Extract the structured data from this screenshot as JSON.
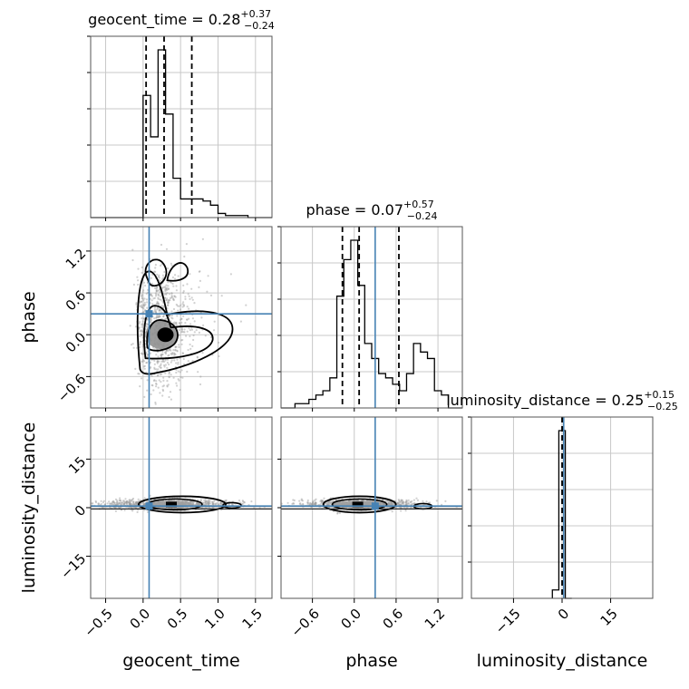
{
  "chart_data": {
    "type": "corner",
    "parameters": [
      "geocent_time",
      "phase",
      "luminosity_distance"
    ],
    "injection": {
      "geocent_time": 0.08,
      "phase": 0.3,
      "luminosity_distance": 0.5
    },
    "colors": {
      "truth": "#4682b4",
      "contour": "#000000",
      "scatter": "#9a9a9a",
      "grid": "#c8c8c8"
    },
    "grid": true,
    "marginals": [
      {
        "param": "geocent_time",
        "title": {
          "name": "geocent_time",
          "median": "0.28",
          "plus": "+0.37",
          "minus": "−0.24"
        },
        "range": [
          -0.7,
          1.72
        ],
        "quantile_lines": [
          0.04,
          0.28,
          0.65
        ],
        "bins": {
          "edges": [
            -0.7,
            -0.6,
            -0.5,
            -0.4,
            -0.3,
            -0.2,
            -0.1,
            0.0,
            0.1,
            0.2,
            0.3,
            0.4,
            0.5,
            0.6,
            0.7,
            0.8,
            0.9,
            1.0,
            1.1,
            1.2,
            1.3,
            1.4,
            1.5,
            1.6,
            1.72
          ],
          "counts": [
            0,
            0,
            0,
            0,
            0,
            0,
            0,
            0.59,
            0.39,
            0.81,
            0.5,
            0.19,
            0.09,
            0.09,
            0.09,
            0.08,
            0.06,
            0.02,
            0.01,
            0.01,
            0.01,
            0.0,
            0.0,
            0.0
          ]
        },
        "xticks": [
          "-0.5",
          "0.0",
          "0.5",
          "1.0",
          "1.5"
        ],
        "xtick_values": [
          -0.5,
          0.0,
          0.5,
          1.0,
          1.5
        ]
      },
      {
        "param": "phase",
        "title": {
          "name": "phase",
          "median": "0.07",
          "plus": "+0.57",
          "minus": "−0.24"
        },
        "range": [
          -1.05,
          1.55
        ],
        "truth": 0.3,
        "quantile_lines": [
          -0.17,
          0.07,
          0.64
        ],
        "bins": {
          "edges": [
            -1.05,
            -0.95,
            -0.85,
            -0.75,
            -0.65,
            -0.55,
            -0.45,
            -0.35,
            -0.25,
            -0.15,
            -0.05,
            0.05,
            0.15,
            0.25,
            0.35,
            0.45,
            0.55,
            0.65,
            0.75,
            0.85,
            0.95,
            1.05,
            1.15,
            1.25,
            1.35,
            1.45,
            1.55
          ],
          "counts": [
            0,
            0,
            0.02,
            0.02,
            0.04,
            0.06,
            0.08,
            0.14,
            0.52,
            0.69,
            0.78,
            0.57,
            0.3,
            0.23,
            0.16,
            0.14,
            0.11,
            0.08,
            0.16,
            0.3,
            0.26,
            0.23,
            0.08,
            0.06,
            0,
            0
          ]
        },
        "xticks": [
          "-0.6",
          "0.0",
          "0.6",
          "1.2"
        ],
        "xtick_values": [
          -0.6,
          0.0,
          0.6,
          1.2
        ]
      },
      {
        "param": "luminosity_distance",
        "title": {
          "name": "luminosity_distance",
          "median": "0.25",
          "plus": "+0.15",
          "minus": "−0.25"
        },
        "range": [
          -28,
          28
        ],
        "quantile_lines": [
          0.0,
          0.25,
          0.4
        ],
        "bins": {
          "edges": [
            -3,
            -1,
            1,
            3
          ],
          "counts": [
            0.05,
            1.0,
            0.0
          ]
        },
        "xticks": [
          "-15",
          "0",
          "15"
        ],
        "xtick_values": [
          -15,
          0,
          15
        ]
      }
    ],
    "yticks": {
      "phase": {
        "labels": [
          "-0.6",
          "0.0",
          "0.6",
          "1.2"
        ],
        "values": [
          -0.6,
          0.0,
          0.6,
          1.2
        ]
      },
      "luminosity_distance": {
        "labels": [
          "-15",
          "0",
          "15"
        ],
        "values": [
          -15,
          0,
          15
        ]
      }
    },
    "xlabels": [
      "geocent_time",
      "phase",
      "luminosity_distance"
    ],
    "ylabels": [
      "phase",
      "luminosity_distance"
    ]
  }
}
